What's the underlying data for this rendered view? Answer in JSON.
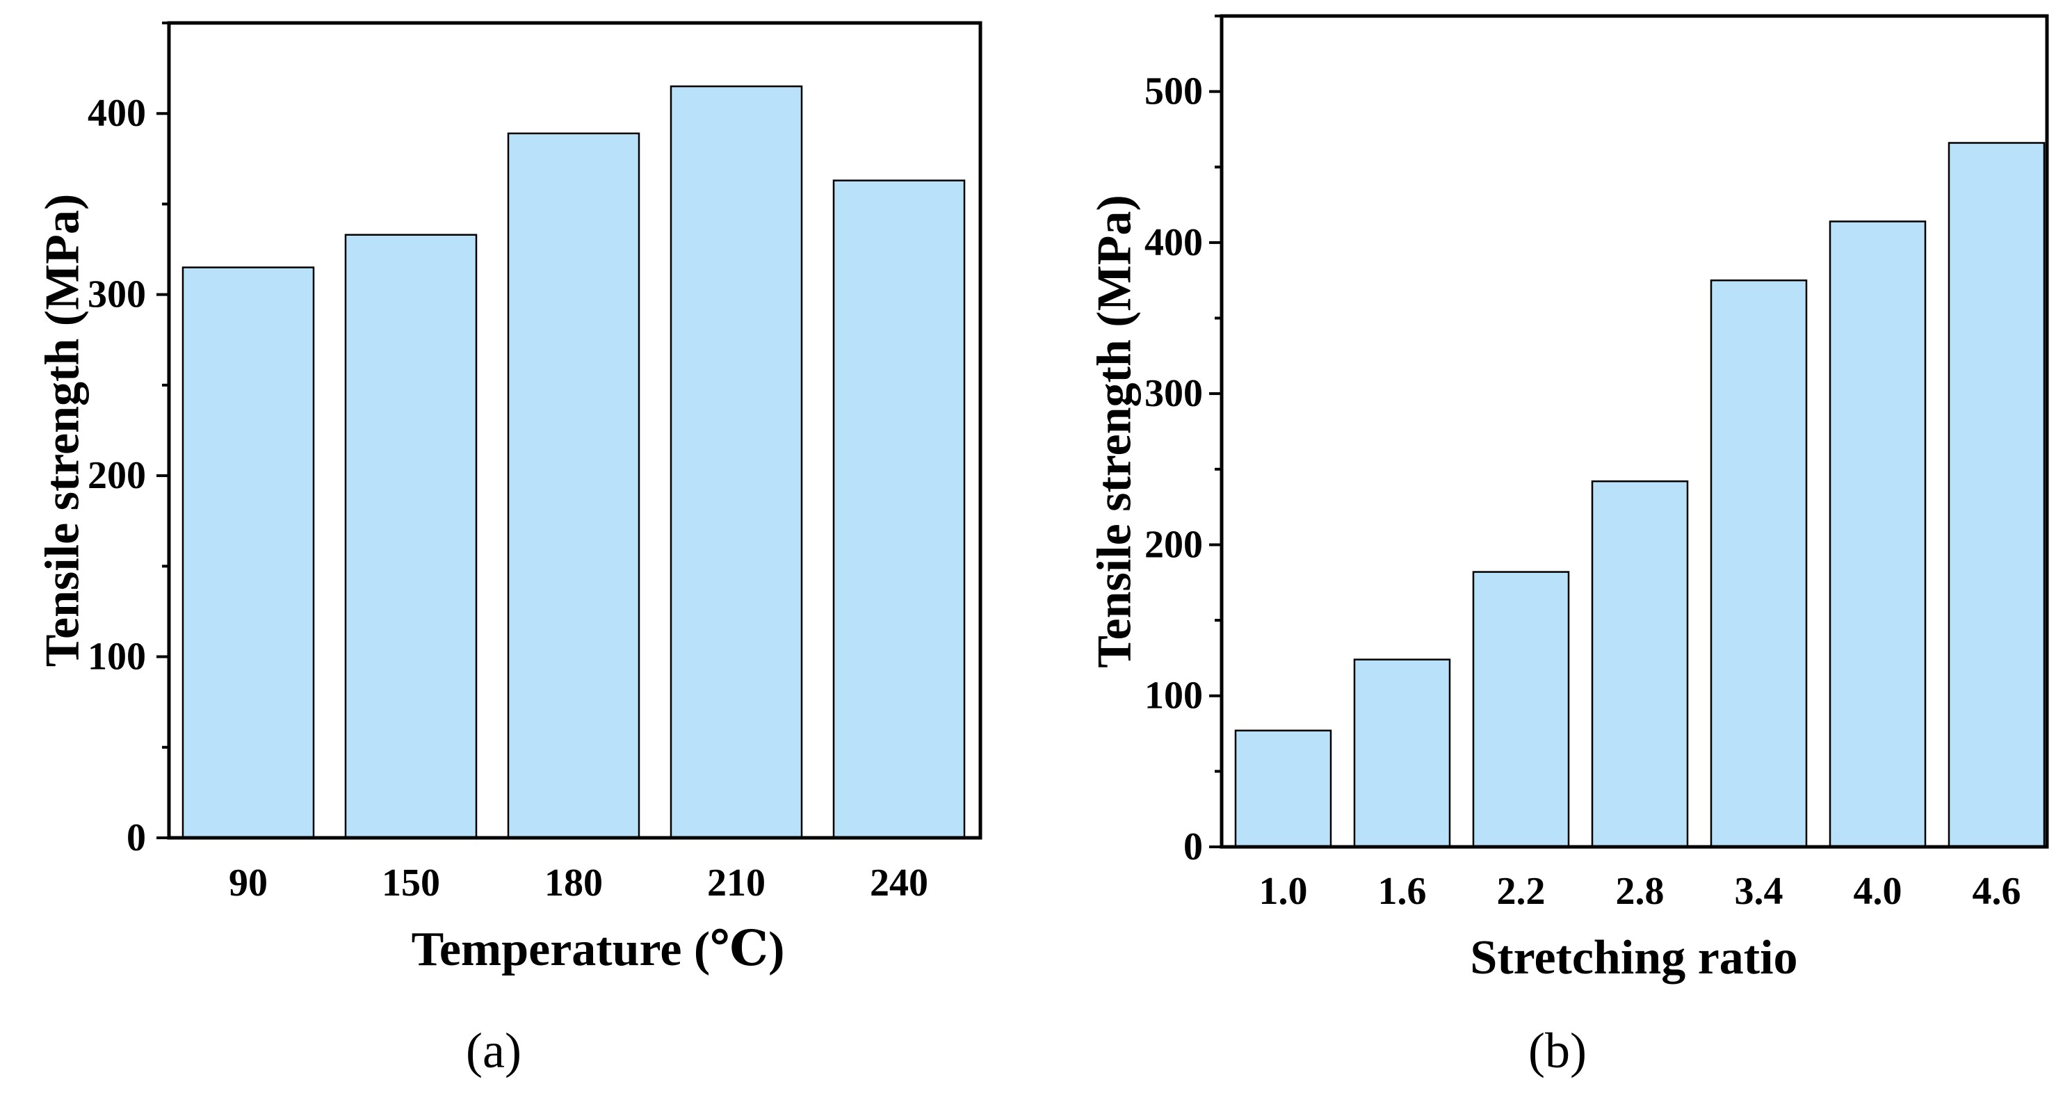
{
  "figure": {
    "panels": [
      "(a)",
      "(b)"
    ]
  },
  "colors": {
    "bar_fill": "#b9e2fa",
    "bar_stroke": "#000000",
    "axis": "#000000"
  },
  "chart_data": [
    {
      "type": "bar",
      "panel_label": "(a)",
      "categories": [
        "90",
        "150",
        "180",
        "210",
        "240"
      ],
      "values": [
        315,
        333,
        389,
        415,
        363
      ],
      "xlabel": "Temperature (℃)",
      "ylabel": "Tensile strength (MPa)",
      "ylim": [
        0,
        450
      ],
      "yticks": [
        0,
        100,
        200,
        300,
        400
      ],
      "yminor_step": 50,
      "grid": false,
      "box": "closed"
    },
    {
      "type": "bar",
      "panel_label": "(b)",
      "categories": [
        "1.0",
        "1.6",
        "2.2",
        "2.8",
        "3.4",
        "4.0",
        "4.6"
      ],
      "values": [
        77,
        124,
        182,
        242,
        375,
        414,
        466
      ],
      "xlabel": "Stretching ratio",
      "ylabel": "Tensile strength (MPa)",
      "ylim": [
        0,
        550
      ],
      "yticks": [
        0,
        100,
        200,
        300,
        400,
        500
      ],
      "yminor_step": 50,
      "grid": false,
      "box": "closed"
    }
  ]
}
